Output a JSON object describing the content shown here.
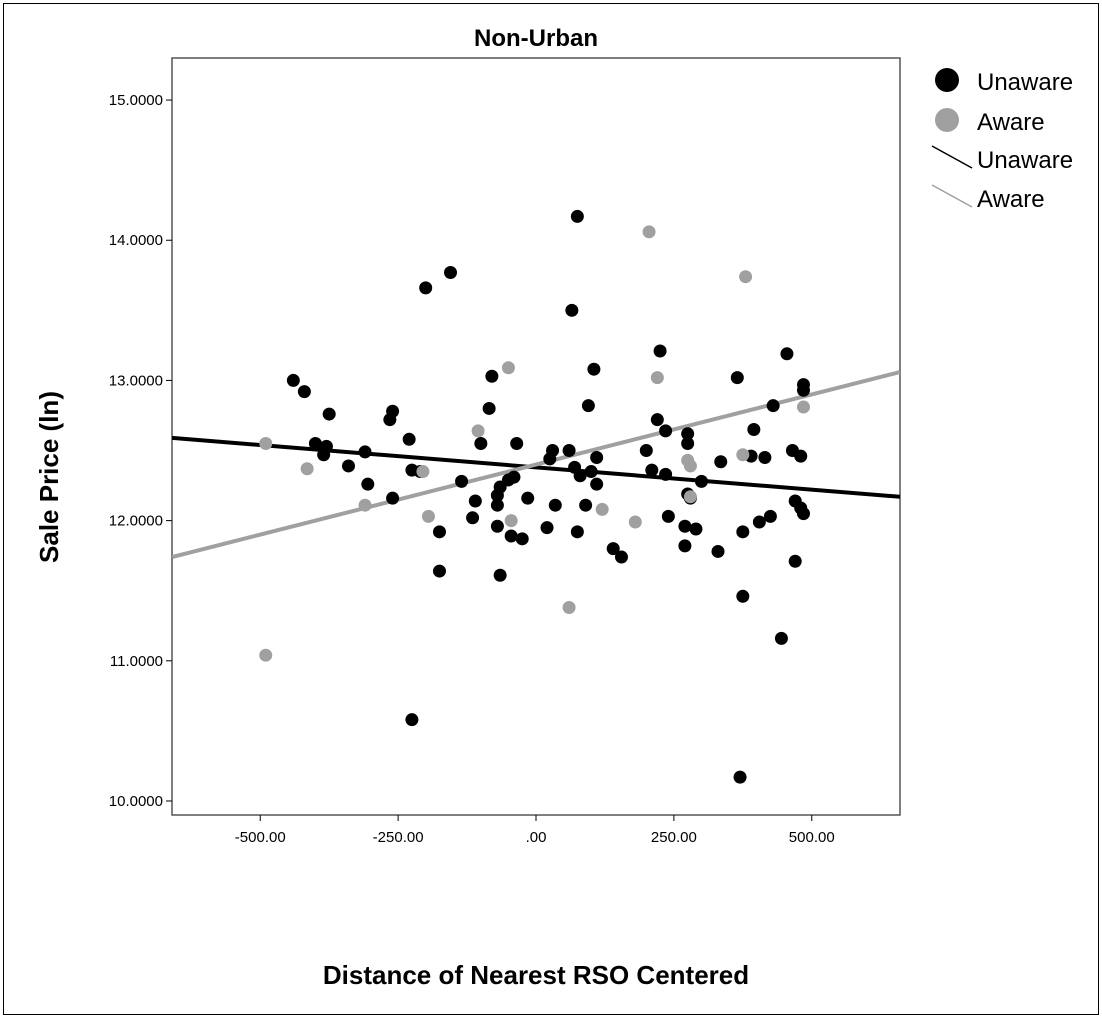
{
  "chart_data": {
    "type": "scatter",
    "title": "Non-Urban",
    "xlabel": "Distance of Nearest RSO Centered",
    "ylabel": "Sale Price (ln)",
    "xlim": [
      -660,
      660
    ],
    "ylim": [
      9.9,
      15.3
    ],
    "x_ticks": [
      -500,
      -250,
      0,
      250,
      500
    ],
    "x_tick_labels": [
      "-500.00",
      "-250.00",
      ".00",
      "250.00",
      "500.00"
    ],
    "y_ticks": [
      10,
      11,
      12,
      13,
      14,
      15
    ],
    "y_tick_labels": [
      "10.0000",
      "11.0000",
      "12.0000",
      "13.0000",
      "14.0000",
      "15.0000"
    ],
    "grid": false,
    "legend_position": "top-right",
    "legend": [
      {
        "label": "Unaware",
        "kind": "marker",
        "color": "#000000"
      },
      {
        "label": "Aware",
        "kind": "marker",
        "color": "#a0a0a0"
      },
      {
        "label": "Unaware",
        "kind": "line",
        "color": "#000000"
      },
      {
        "label": "Aware",
        "kind": "line",
        "color": "#a0a0a0"
      }
    ],
    "series": [
      {
        "name": "Unaware",
        "color": "#000000",
        "points": [
          [
            -440,
            13.0
          ],
          [
            -420,
            12.92
          ],
          [
            -400,
            12.55
          ],
          [
            -385,
            12.47
          ],
          [
            -380,
            12.53
          ],
          [
            -375,
            12.76
          ],
          [
            -340,
            12.39
          ],
          [
            -310,
            12.49
          ],
          [
            -305,
            12.26
          ],
          [
            -265,
            12.72
          ],
          [
            -260,
            12.78
          ],
          [
            -260,
            12.16
          ],
          [
            -230,
            12.58
          ],
          [
            -225,
            12.36
          ],
          [
            -210,
            12.35
          ],
          [
            -225,
            10.58
          ],
          [
            -200,
            13.66
          ],
          [
            -175,
            11.64
          ],
          [
            -175,
            11.92
          ],
          [
            -155,
            13.77
          ],
          [
            -135,
            12.28
          ],
          [
            -115,
            12.02
          ],
          [
            -110,
            12.14
          ],
          [
            -100,
            12.55
          ],
          [
            -85,
            12.8
          ],
          [
            -80,
            13.03
          ],
          [
            -70,
            12.18
          ],
          [
            -70,
            12.11
          ],
          [
            -70,
            11.96
          ],
          [
            -65,
            11.61
          ],
          [
            -65,
            12.24
          ],
          [
            -50,
            12.29
          ],
          [
            -45,
            11.89
          ],
          [
            -40,
            12.31
          ],
          [
            -35,
            12.55
          ],
          [
            -25,
            11.87
          ],
          [
            -15,
            12.16
          ],
          [
            20,
            11.95
          ],
          [
            25,
            12.44
          ],
          [
            30,
            12.5
          ],
          [
            35,
            12.11
          ],
          [
            60,
            12.5
          ],
          [
            65,
            13.5
          ],
          [
            70,
            12.38
          ],
          [
            75,
            14.17
          ],
          [
            75,
            11.92
          ],
          [
            80,
            12.32
          ],
          [
            90,
            12.11
          ],
          [
            95,
            12.82
          ],
          [
            100,
            12.35
          ],
          [
            105,
            13.08
          ],
          [
            110,
            12.45
          ],
          [
            110,
            12.26
          ],
          [
            140,
            11.8
          ],
          [
            155,
            11.74
          ],
          [
            200,
            12.5
          ],
          [
            210,
            12.36
          ],
          [
            220,
            12.72
          ],
          [
            225,
            13.21
          ],
          [
            235,
            12.64
          ],
          [
            235,
            12.33
          ],
          [
            240,
            12.03
          ],
          [
            270,
            11.96
          ],
          [
            270,
            11.82
          ],
          [
            275,
            12.55
          ],
          [
            275,
            12.62
          ],
          [
            275,
            12.19
          ],
          [
            280,
            12.16
          ],
          [
            290,
            11.94
          ],
          [
            300,
            12.28
          ],
          [
            330,
            11.78
          ],
          [
            335,
            12.42
          ],
          [
            365,
            13.02
          ],
          [
            370,
            10.17
          ],
          [
            375,
            11.46
          ],
          [
            375,
            11.92
          ],
          [
            390,
            12.46
          ],
          [
            395,
            12.65
          ],
          [
            405,
            11.99
          ],
          [
            415,
            12.45
          ],
          [
            425,
            12.03
          ],
          [
            430,
            12.82
          ],
          [
            445,
            11.16
          ],
          [
            455,
            13.19
          ],
          [
            465,
            12.5
          ],
          [
            470,
            11.71
          ],
          [
            470,
            12.14
          ],
          [
            480,
            12.46
          ],
          [
            480,
            12.09
          ],
          [
            485,
            12.97
          ],
          [
            485,
            12.93
          ],
          [
            485,
            12.05
          ]
        ],
        "fit_line": {
          "x": [
            -660,
            660
          ],
          "y": [
            12.59,
            12.17
          ]
        }
      },
      {
        "name": "Aware",
        "color": "#a0a0a0",
        "points": [
          [
            -490,
            12.55
          ],
          [
            -490,
            11.04
          ],
          [
            -415,
            12.37
          ],
          [
            -310,
            12.11
          ],
          [
            -205,
            12.35
          ],
          [
            -195,
            12.03
          ],
          [
            -105,
            12.64
          ],
          [
            -50,
            13.09
          ],
          [
            -45,
            12.0
          ],
          [
            60,
            11.38
          ],
          [
            120,
            12.08
          ],
          [
            180,
            11.99
          ],
          [
            205,
            14.06
          ],
          [
            220,
            13.02
          ],
          [
            275,
            12.43
          ],
          [
            280,
            12.39
          ],
          [
            280,
            12.17
          ],
          [
            375,
            12.47
          ],
          [
            380,
            13.74
          ],
          [
            485,
            12.81
          ]
        ],
        "fit_line": {
          "x": [
            -660,
            660
          ],
          "y": [
            11.74,
            13.06
          ]
        }
      }
    ]
  }
}
